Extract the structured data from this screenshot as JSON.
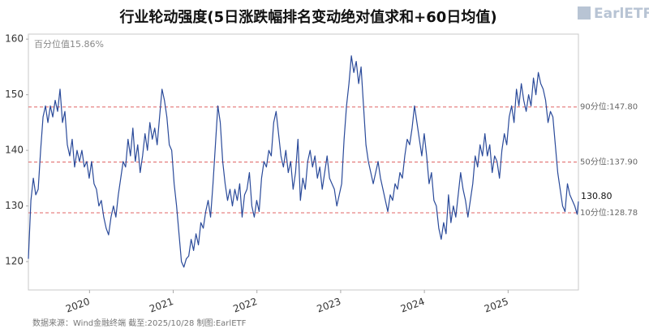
{
  "chart_data": {
    "type": "line",
    "title": "行业轮动强度(5日涨跌幅排名变动绝对值求和+60日均值)",
    "logo": "EarlETF",
    "percentile_note": "百分位值15.86%",
    "source": "数据来源：Wind金融终端 截至:2025/10/28 制图:EarlETF",
    "end_label": "130.80",
    "color": "#2a4a9a",
    "grid": false,
    "xlim": [
      2019.27,
      2025.84
    ],
    "xticks": [
      2020,
      2021,
      2022,
      2023,
      2024,
      2025
    ],
    "ylim": [
      114.9,
      160.9
    ],
    "yticks": [
      120,
      130,
      140,
      150,
      160
    ],
    "reference_lines": [
      {
        "value": 147.8,
        "label": "90分位:147.80"
      },
      {
        "value": 137.9,
        "label": "50分位:137.90"
      },
      {
        "value": 128.78,
        "label": "10分位:128.78"
      }
    ],
    "x": [
      2019.27,
      2019.3,
      2019.329,
      2019.358,
      2019.387,
      2019.416,
      2019.445,
      2019.474,
      2019.503,
      2019.532,
      2019.561,
      2019.59,
      2019.619,
      2019.648,
      2019.677,
      2019.706,
      2019.735,
      2019.764,
      2019.793,
      2019.822,
      2019.851,
      2019.88,
      2019.909,
      2019.938,
      2019.967,
      2019.996,
      2020.025,
      2020.054,
      2020.083,
      2020.112,
      2020.141,
      2020.17,
      2020.199,
      2020.228,
      2020.257,
      2020.286,
      2020.315,
      2020.344,
      2020.373,
      2020.402,
      2020.431,
      2020.46,
      2020.489,
      2020.518,
      2020.547,
      2020.576,
      2020.605,
      2020.634,
      2020.663,
      2020.692,
      2020.721,
      2020.75,
      2020.779,
      2020.808,
      2020.837,
      2020.866,
      2020.895,
      2020.924,
      2020.953,
      2020.982,
      2021.011,
      2021.04,
      2021.069,
      2021.098,
      2021.127,
      2021.156,
      2021.185,
      2021.214,
      2021.243,
      2021.272,
      2021.301,
      2021.33,
      2021.359,
      2021.388,
      2021.417,
      2021.446,
      2021.475,
      2021.504,
      2021.533,
      2021.562,
      2021.591,
      2021.62,
      2021.649,
      2021.678,
      2021.707,
      2021.736,
      2021.765,
      2021.794,
      2021.823,
      2021.852,
      2021.881,
      2021.91,
      2021.939,
      2021.968,
      2021.997,
      2022.026,
      2022.055,
      2022.084,
      2022.113,
      2022.142,
      2022.171,
      2022.2,
      2022.229,
      2022.258,
      2022.287,
      2022.316,
      2022.345,
      2022.374,
      2022.403,
      2022.432,
      2022.461,
      2022.49,
      2022.519,
      2022.548,
      2022.577,
      2022.606,
      2022.635,
      2022.664,
      2022.693,
      2022.722,
      2022.751,
      2022.78,
      2022.809,
      2022.838,
      2022.867,
      2022.896,
      2022.925,
      2022.954,
      2022.983,
      2023.012,
      2023.041,
      2023.07,
      2023.099,
      2023.128,
      2023.157,
      2023.186,
      2023.215,
      2023.244,
      2023.273,
      2023.302,
      2023.331,
      2023.36,
      2023.389,
      2023.418,
      2023.447,
      2023.476,
      2023.505,
      2023.534,
      2023.563,
      2023.592,
      2023.621,
      2023.65,
      2023.679,
      2023.708,
      2023.737,
      2023.766,
      2023.795,
      2023.824,
      2023.853,
      2023.882,
      2023.911,
      2023.94,
      2023.969,
      2023.998,
      2024.027,
      2024.056,
      2024.085,
      2024.114,
      2024.143,
      2024.172,
      2024.201,
      2024.23,
      2024.259,
      2024.288,
      2024.317,
      2024.346,
      2024.375,
      2024.404,
      2024.433,
      2024.462,
      2024.491,
      2024.52,
      2024.549,
      2024.578,
      2024.607,
      2024.636,
      2024.665,
      2024.694,
      2024.723,
      2024.752,
      2024.781,
      2024.81,
      2024.839,
      2024.868,
      2024.897,
      2024.926,
      2024.955,
      2024.984,
      2025.013,
      2025.042,
      2025.071,
      2025.1,
      2025.129,
      2025.158,
      2025.187,
      2025.216,
      2025.245,
      2025.274,
      2025.303,
      2025.332,
      2025.361,
      2025.39,
      2025.419,
      2025.448,
      2025.477,
      2025.506,
      2025.535,
      2025.564,
      2025.593,
      2025.622,
      2025.651,
      2025.68,
      2025.709,
      2025.738,
      2025.767,
      2025.796,
      2025.825,
      2025.84
    ],
    "values": [
      120.5,
      131,
      135,
      132,
      133,
      140,
      146,
      148,
      145,
      148,
      146,
      149,
      147,
      151,
      145,
      147,
      141,
      139,
      142,
      137,
      140,
      138,
      140,
      137,
      138,
      135,
      138,
      134,
      133,
      130,
      131,
      128,
      126,
      124.8,
      128,
      130,
      128,
      132,
      135,
      138,
      137,
      142,
      139,
      144,
      138,
      141,
      136,
      139,
      143,
      140,
      145,
      142,
      144,
      141,
      146,
      151,
      149,
      146,
      141,
      140,
      134,
      130,
      125,
      120,
      119,
      120.5,
      121,
      124,
      122,
      125,
      123,
      127,
      126,
      129,
      131,
      128,
      134,
      141,
      148,
      145,
      138,
      134,
      131,
      133,
      130,
      133,
      131,
      134,
      128,
      132,
      133,
      136,
      130,
      128,
      131,
      129,
      135,
      138,
      137,
      140,
      139,
      145,
      147,
      143,
      139,
      137,
      140,
      136,
      138,
      133,
      136,
      142,
      131,
      135,
      133,
      138,
      140,
      137,
      139,
      135,
      137,
      133,
      136,
      139,
      135,
      134,
      133,
      130,
      132,
      134,
      142,
      148,
      152,
      157,
      154,
      156,
      152,
      155,
      148,
      141,
      138,
      136,
      134,
      136,
      138,
      135,
      133,
      131,
      129,
      132,
      131,
      134,
      133,
      136,
      135,
      139,
      142,
      141,
      144,
      148,
      145,
      142,
      139,
      143,
      139,
      134,
      136,
      131,
      130,
      126,
      124,
      127,
      125,
      132,
      127,
      130,
      128,
      132,
      136,
      133,
      131,
      128,
      131,
      134,
      139,
      137,
      141,
      139,
      143,
      139,
      141,
      136,
      139,
      138,
      135,
      140,
      143,
      141,
      146,
      148,
      145,
      151,
      148,
      152,
      149,
      147,
      150,
      148,
      153,
      150,
      154,
      152,
      151,
      149,
      145,
      147,
      146,
      141,
      136,
      133,
      130,
      129,
      134,
      132,
      131,
      130,
      128.5,
      130.8
    ]
  }
}
